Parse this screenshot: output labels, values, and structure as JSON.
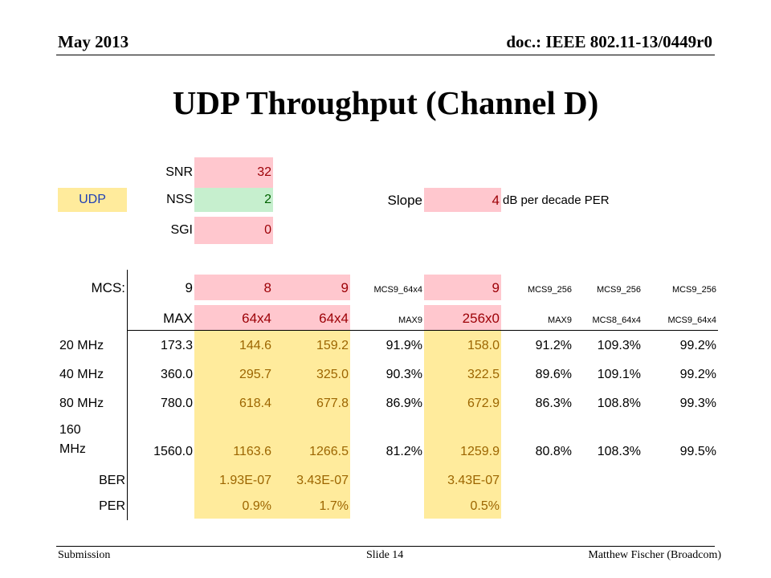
{
  "header": {
    "date": "May 2013",
    "doc": "doc.: IEEE 802.11-13/0449r0"
  },
  "title": "UDP Throughput (Channel D)",
  "params": {
    "udp": "UDP",
    "snr_label": "SNR",
    "snr_value": "32",
    "nss_label": "NSS",
    "nss_value": "2",
    "sgi_label": "SGI",
    "sgi_value": "0",
    "slope_label": "Slope",
    "slope_value": "4",
    "slope_unit": "dB per decade PER"
  },
  "table": {
    "mcs_label": "MCS:",
    "mcs_row": [
      "9",
      "8",
      "9",
      "MCS9_64x4",
      "9",
      "MCS9_256",
      "MCS9_256",
      "MCS9_256"
    ],
    "sub_row": [
      "MAX",
      "64x4",
      "64x4",
      "MAX9",
      "256x0",
      "MAX9",
      "MCS8_64x4",
      "MCS9_64x4"
    ],
    "rows": [
      {
        "label": "20 MHz",
        "values": [
          "173.3",
          "144.6",
          "159.2",
          "91.9%",
          "158.0",
          "91.2%",
          "109.3%",
          "99.2%"
        ]
      },
      {
        "label": "40 MHz",
        "values": [
          "360.0",
          "295.7",
          "325.0",
          "90.3%",
          "322.5",
          "89.6%",
          "109.1%",
          "99.2%"
        ]
      },
      {
        "label": "80 MHz",
        "values": [
          "780.0",
          "618.4",
          "677.8",
          "86.9%",
          "672.9",
          "86.3%",
          "108.8%",
          "99.3%"
        ]
      },
      {
        "label_line1": "160",
        "label_line2": "MHz",
        "values": [
          "1560.0",
          "1163.6",
          "1266.5",
          "81.2%",
          "1259.9",
          "80.8%",
          "108.3%",
          "99.5%"
        ]
      }
    ],
    "ber": {
      "label": "BER",
      "v64x4a": "1.93E-07",
      "v64x4b": "3.43E-07",
      "v256x0": "3.43E-07"
    },
    "per": {
      "label": "PER",
      "v64x4a": "0.9%",
      "v64x4b": "1.7%",
      "v256x0": "0.5%"
    }
  },
  "footer": {
    "left": "Submission",
    "center": "Slide 14",
    "right": "Matthew Fischer (Broadcom)"
  }
}
